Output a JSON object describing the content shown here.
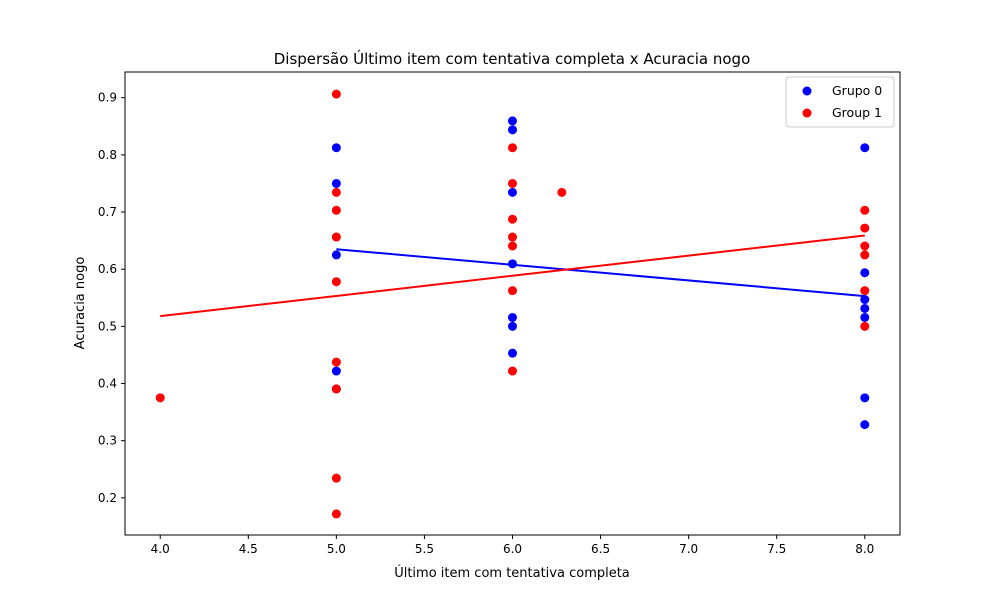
{
  "chart_data": {
    "type": "scatter",
    "title": "Dispersão Último item com tentativa completa x Acuracia nogo",
    "xlabel": "Último item com tentativa completa",
    "ylabel": "Acuracia nogo",
    "xlim": [
      3.8,
      8.2
    ],
    "ylim": [
      0.135,
      0.945
    ],
    "xticks": [
      "4.0",
      "4.5",
      "5.0",
      "5.5",
      "6.0",
      "6.5",
      "7.0",
      "7.5",
      "8.0"
    ],
    "yticks": [
      "0.2",
      "0.3",
      "0.4",
      "0.5",
      "0.6",
      "0.7",
      "0.8",
      "0.9"
    ],
    "grid": false,
    "legend_position": "top-right",
    "series": [
      {
        "name": "Grupo 0",
        "color": "#0000ff",
        "points": [
          [
            5.0,
            0.8125
          ],
          [
            5.0,
            0.75
          ],
          [
            5.0,
            0.625
          ],
          [
            5.0,
            0.4219
          ],
          [
            5.0,
            0.3906
          ],
          [
            6.0,
            0.8594
          ],
          [
            6.0,
            0.8438
          ],
          [
            6.0,
            0.7344
          ],
          [
            6.0,
            0.6094
          ],
          [
            6.0,
            0.5156
          ],
          [
            6.0,
            0.5
          ],
          [
            6.0,
            0.4531
          ],
          [
            8.0,
            0.8125
          ],
          [
            8.0,
            0.5938
          ],
          [
            8.0,
            0.5469
          ],
          [
            8.0,
            0.5313
          ],
          [
            8.0,
            0.5156
          ],
          [
            8.0,
            0.375
          ],
          [
            8.0,
            0.3281
          ]
        ],
        "trendline": [
          [
            5.0,
            0.635
          ],
          [
            8.0,
            0.553
          ]
        ]
      },
      {
        "name": "Group 1",
        "color": "#ff0000",
        "points": [
          [
            4.0,
            0.375
          ],
          [
            5.0,
            0.9063
          ],
          [
            5.0,
            0.7344
          ],
          [
            5.0,
            0.7031
          ],
          [
            5.0,
            0.6563
          ],
          [
            5.0,
            0.5781
          ],
          [
            5.0,
            0.4375
          ],
          [
            5.0,
            0.3906
          ],
          [
            5.0,
            0.2344
          ],
          [
            5.0,
            0.1719
          ],
          [
            6.0,
            0.8125
          ],
          [
            6.0,
            0.75
          ],
          [
            6.0,
            0.6875
          ],
          [
            6.0,
            0.6563
          ],
          [
            6.0,
            0.6406
          ],
          [
            6.0,
            0.5625
          ],
          [
            6.0,
            0.4219
          ],
          [
            6.28,
            0.7344
          ],
          [
            8.0,
            0.7031
          ],
          [
            8.0,
            0.6719
          ],
          [
            8.0,
            0.6406
          ],
          [
            8.0,
            0.625
          ],
          [
            8.0,
            0.5625
          ],
          [
            8.0,
            0.5
          ]
        ],
        "trendline": [
          [
            4.0,
            0.518
          ],
          [
            8.0,
            0.659
          ]
        ]
      }
    ]
  }
}
